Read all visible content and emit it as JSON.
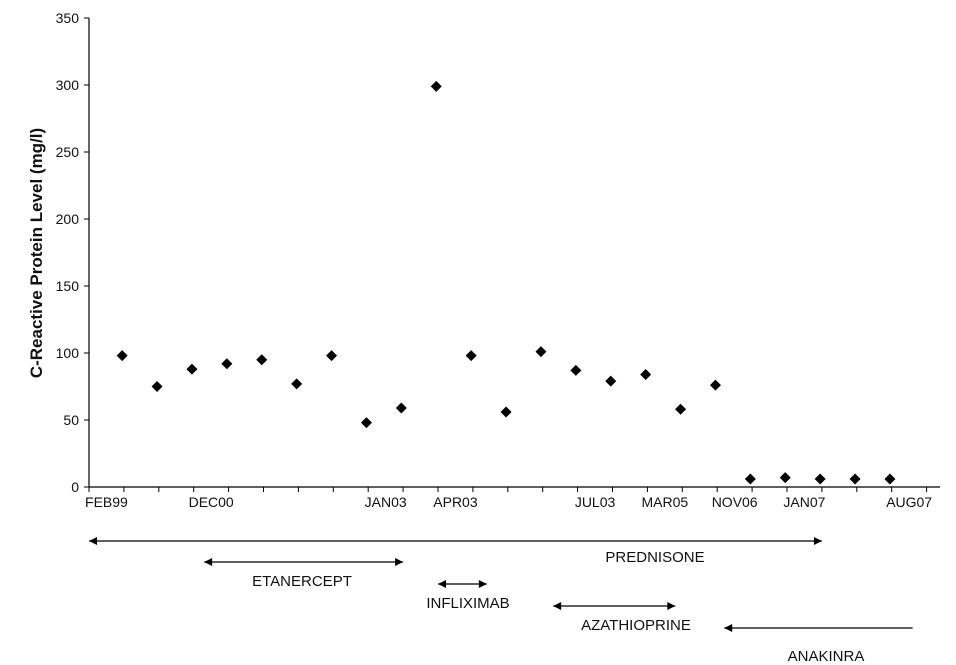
{
  "chart_data": {
    "type": "scatter",
    "ylabel": "C-Reactive Protein Level (mg/l)",
    "ylim": [
      0,
      350
    ],
    "yticks": [
      0,
      50,
      100,
      150,
      200,
      250,
      300,
      350
    ],
    "grid": false,
    "legend": "none",
    "marker": "diamond",
    "marker_color": "#000000",
    "x_labels": [
      {
        "label": "FEB99",
        "index": 1
      },
      {
        "label": "DEC00",
        "index": 4
      },
      {
        "label": "JAN03",
        "index": 9
      },
      {
        "label": "APR03",
        "index": 11
      },
      {
        "label": "JUL03",
        "index": 15
      },
      {
        "label": "MAR05",
        "index": 17
      },
      {
        "label": "NOV06",
        "index": 19
      },
      {
        "label": "JAN07",
        "index": 21
      },
      {
        "label": "AUG07",
        "index": 24
      }
    ],
    "points": [
      {
        "x": 1,
        "y": 98
      },
      {
        "x": 2,
        "y": 75
      },
      {
        "x": 3,
        "y": 88
      },
      {
        "x": 4,
        "y": 92
      },
      {
        "x": 5,
        "y": 95
      },
      {
        "x": 6,
        "y": 77
      },
      {
        "x": 7,
        "y": 98
      },
      {
        "x": 8,
        "y": 48
      },
      {
        "x": 9,
        "y": 59
      },
      {
        "x": 10,
        "y": 299
      },
      {
        "x": 11,
        "y": 98
      },
      {
        "x": 12,
        "y": 56
      },
      {
        "x": 13,
        "y": 101
      },
      {
        "x": 14,
        "y": 87
      },
      {
        "x": 15,
        "y": 79
      },
      {
        "x": 16,
        "y": 84
      },
      {
        "x": 17,
        "y": 58
      },
      {
        "x": 18,
        "y": 76
      },
      {
        "x": 19,
        "y": 6
      },
      {
        "x": 20,
        "y": 7
      },
      {
        "x": 21,
        "y": 6
      },
      {
        "x": 22,
        "y": 6
      },
      {
        "x": 23,
        "y": 6
      }
    ],
    "treatments": [
      {
        "name": "PREDNISONE",
        "from": 0,
        "to": 21,
        "arrows": "both"
      },
      {
        "name": "ETANERCEPT",
        "from": 3.3,
        "to": 9,
        "arrows": "both"
      },
      {
        "name": "INFLIXIMAB",
        "from": 10,
        "to": 11.4,
        "arrows": "both"
      },
      {
        "name": "AZATHIOPRINE",
        "from": 13.3,
        "to": 16.8,
        "arrows": "both"
      },
      {
        "name": "ANAKINRA",
        "from": 18.2,
        "to": 23.6,
        "arrows": "start"
      }
    ]
  }
}
